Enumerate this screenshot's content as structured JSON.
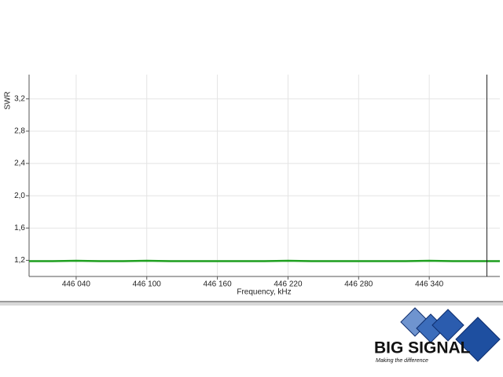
{
  "chart_data": {
    "type": "line",
    "y_label": "SWR",
    "x_label": "Frequency, kHz",
    "x": [
      446000,
      446020,
      446040,
      446060,
      446080,
      446100,
      446120,
      446140,
      446160,
      446180,
      446200,
      446220,
      446240,
      446260,
      446280,
      446300,
      446320,
      446340,
      446360,
      446380,
      446400
    ],
    "values": [
      1.19,
      1.19,
      1.195,
      1.19,
      1.19,
      1.195,
      1.19,
      1.19,
      1.19,
      1.19,
      1.19,
      1.195,
      1.19,
      1.19,
      1.19,
      1.19,
      1.19,
      1.195,
      1.19,
      1.19,
      1.19
    ],
    "color": "#1fa020",
    "xlim": [
      446000,
      446400
    ],
    "ylim": [
      1.0,
      3.5
    ],
    "xticks": [
      {
        "value": 446040,
        "label": "446 040"
      },
      {
        "value": 446100,
        "label": "446 100"
      },
      {
        "value": 446160,
        "label": "446 160"
      },
      {
        "value": 446220,
        "label": "446 220"
      },
      {
        "value": 446280,
        "label": "446 280"
      },
      {
        "value": 446340,
        "label": "446 340"
      }
    ],
    "yticks": [
      {
        "value": 1.2,
        "label": "1,2"
      },
      {
        "value": 1.6,
        "label": "1,6"
      },
      {
        "value": 2.0,
        "label": "2,0"
      },
      {
        "value": 2.4,
        "label": "2,4"
      },
      {
        "value": 2.8,
        "label": "2,8"
      },
      {
        "value": 3.2,
        "label": "3,2"
      }
    ],
    "grid": true,
    "cursor_x": 446389
  },
  "logo": {
    "name": "BIG SIGNAL",
    "tagline": "Making the difference"
  }
}
